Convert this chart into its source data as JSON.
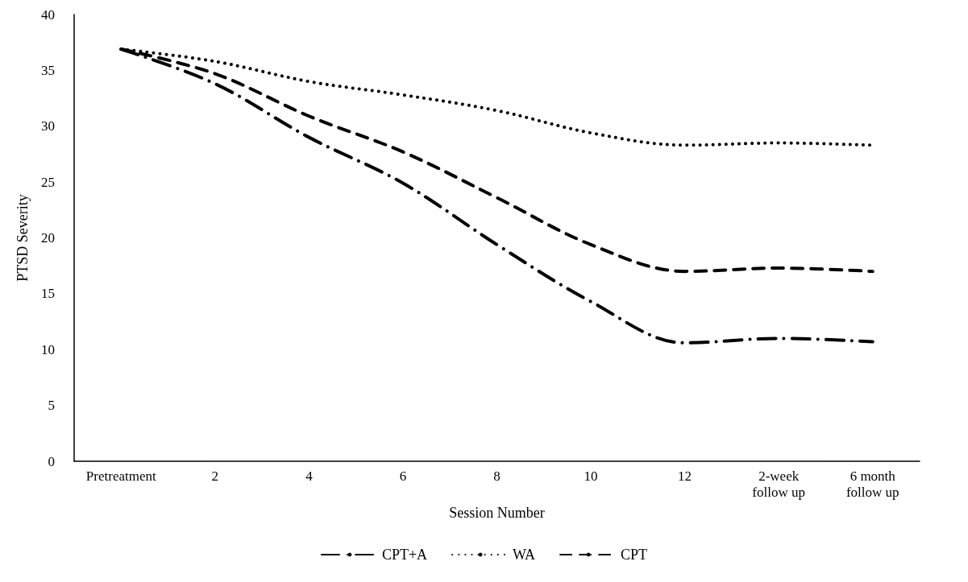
{
  "chart_data": {
    "type": "line",
    "xlabel": "Session Number",
    "ylabel": "PTSD Severity",
    "categories": [
      "Pretreatment",
      "2",
      "4",
      "6",
      "8",
      "10",
      "12",
      "2-week\nfollow up",
      "6 month\nfollow up"
    ],
    "series": [
      {
        "name": "CPT+A",
        "color": "#000000",
        "line_style": "dashdot",
        "values": [
          36.9,
          33.8,
          29.0,
          24.9,
          19.4,
          14.3,
          10.6,
          11.0,
          10.7
        ]
      },
      {
        "name": "WA",
        "color": "#000000",
        "line_style": "dotted",
        "values": [
          36.9,
          35.8,
          34.0,
          32.8,
          31.4,
          29.4,
          28.3,
          28.5,
          28.3
        ]
      },
      {
        "name": "CPT",
        "color": "#000000",
        "line_style": "dashed",
        "values": [
          36.9,
          34.7,
          30.9,
          27.7,
          23.6,
          19.4,
          17.0,
          17.3,
          17.0
        ]
      }
    ],
    "ylim": [
      0,
      40
    ],
    "yticks": [
      0,
      5,
      10,
      15,
      20,
      25,
      30,
      35,
      40
    ],
    "grid": false,
    "legend": "bottom",
    "marker": "none"
  }
}
